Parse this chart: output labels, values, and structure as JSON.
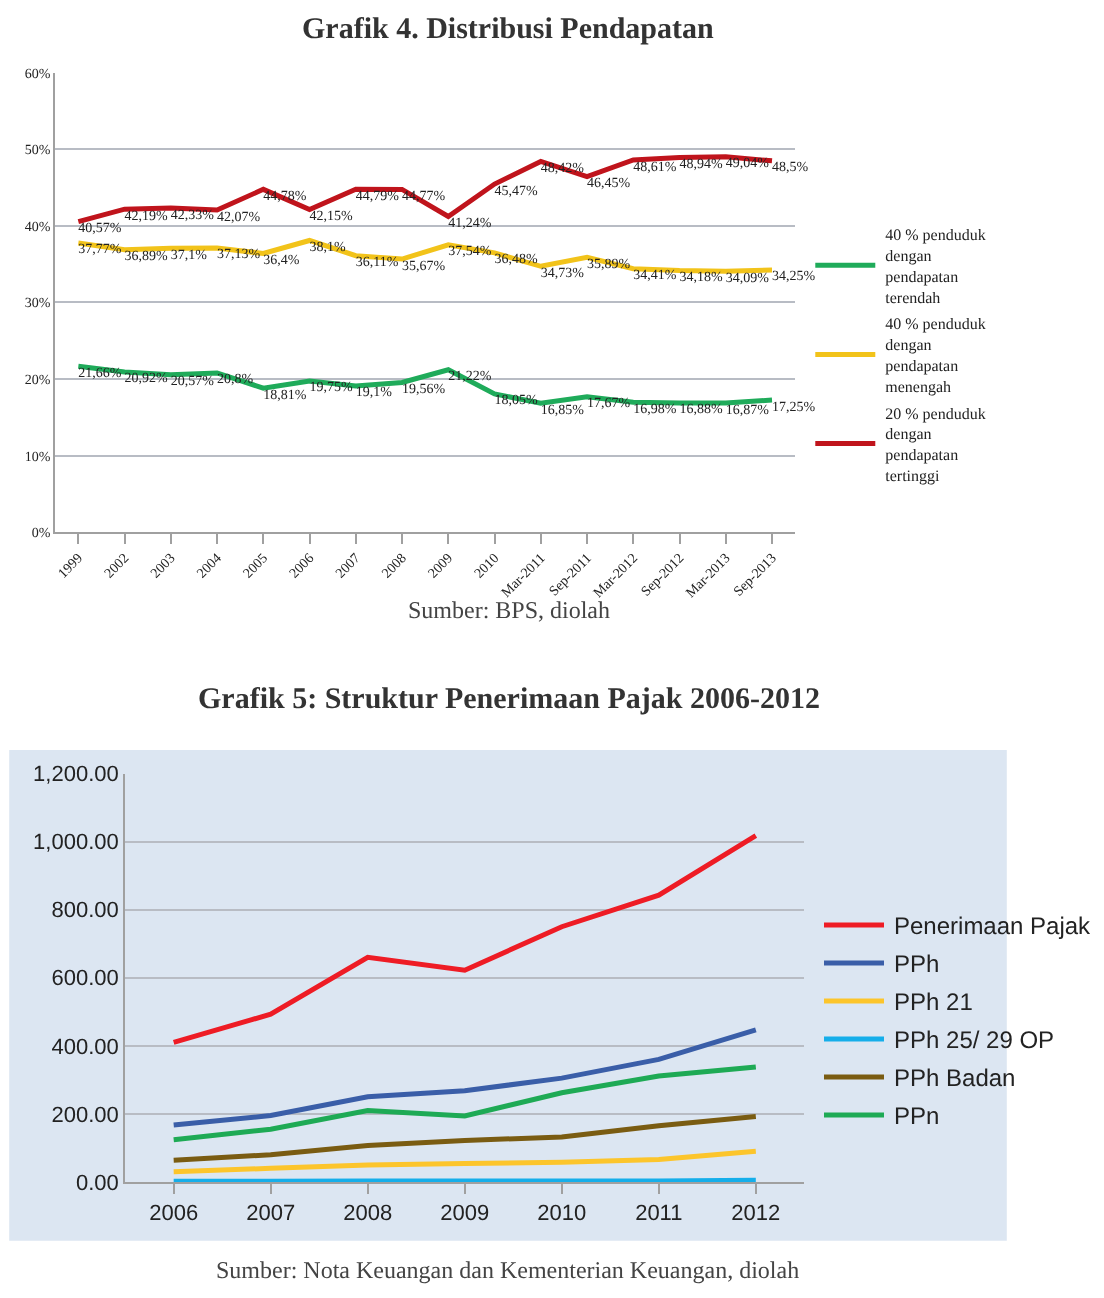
{
  "chart_data": [
    {
      "type": "line",
      "title": "Grafik 4. Distribusi Pendapatan",
      "categories": [
        "1999",
        "2002",
        "2003",
        "2004",
        "2005",
        "2006",
        "2007",
        "2008",
        "2009",
        "2010",
        "Mar-2011",
        "Sep-2011",
        "Mar-2012",
        "Sep-2012",
        "Mar-2013",
        "Sep-2013"
      ],
      "series": [
        {
          "name": "40 % penduduk dengan pendapatan terendah",
          "color": "#1fab5a",
          "values": [
            21.66,
            20.92,
            20.57,
            20.8,
            18.81,
            19.75,
            19.1,
            19.56,
            21.22,
            18.05,
            16.85,
            17.67,
            16.98,
            16.88,
            16.87,
            17.25
          ],
          "value_labels": [
            "21,66%",
            "20,92%",
            "20,57%",
            "20,8%",
            "18,81%",
            "19,75%",
            "19,1%",
            "19,56%",
            "21,22%",
            "18,05%",
            "16,85%",
            "17,67%",
            "16,98%",
            "16,88%",
            "16,87%",
            "17,25%"
          ]
        },
        {
          "name": "40 % penduduk dengan pendapatan menengah",
          "color": "#f2c31a",
          "values": [
            37.77,
            36.89,
            37.1,
            37.13,
            36.4,
            38.1,
            36.11,
            35.67,
            37.54,
            36.48,
            34.73,
            35.89,
            34.41,
            34.18,
            34.09,
            34.25
          ],
          "value_labels": [
            "37,77%",
            "36,89%",
            "37,1%",
            "37,13%",
            "36,4%",
            "38,1%",
            "36,11%",
            "35,67%",
            "37,54%",
            "36,48%",
            "34,73%",
            "35,89%",
            "34,41%",
            "34,18%",
            "34,09%",
            "34,25%"
          ]
        },
        {
          "name": "20 % penduduk dengan pendapatan tertinggi",
          "color": "#c0141c",
          "values": [
            40.57,
            42.19,
            42.33,
            42.07,
            44.78,
            42.15,
            44.79,
            44.77,
            41.24,
            45.47,
            48.42,
            46.45,
            48.61,
            48.94,
            49.04,
            48.5
          ],
          "value_labels": [
            "40,57%",
            "42,19%",
            "42,33%",
            "42,07%",
            "44,78%",
            "42,15%",
            "44,79%",
            "44,77%",
            "41,24%",
            "45,47%",
            "48,42%",
            "46,45%",
            "48,61%",
            "48,94%",
            "49,04%",
            "48,5%"
          ]
        }
      ],
      "ylim": [
        0,
        60
      ],
      "yticks": [
        {
          "value": 0,
          "label": "0%"
        },
        {
          "value": 10,
          "label": "10%"
        },
        {
          "value": 20,
          "label": "20%"
        },
        {
          "value": 30,
          "label": "30%"
        },
        {
          "value": 40,
          "label": "40%"
        },
        {
          "value": 50,
          "label": "50%"
        },
        {
          "value": 60,
          "label": "60%"
        }
      ],
      "grid": "y",
      "legend": "right",
      "marker": "none",
      "line_style": "solid",
      "annotations": [
        "Sumber: BPS, diolah"
      ]
    },
    {
      "type": "line",
      "title": "Grafik 5: Struktur Penerimaan Pajak 2006-2012",
      "categories": [
        "2006",
        "2007",
        "2008",
        "2009",
        "2010",
        "2011",
        "2012"
      ],
      "series": [
        {
          "name": "Penerimaan Pajak",
          "color": "#ee1c25",
          "values": [
            410,
            493,
            660,
            622,
            750,
            843,
            1018
          ]
        },
        {
          "name": "PPh",
          "color": "#3a5ea8",
          "values": [
            167,
            195,
            250,
            268,
            305,
            360,
            447
          ]
        },
        {
          "name": "PPh 21",
          "color": "#fcc52c",
          "values": [
            30,
            40,
            50,
            54,
            58,
            66,
            90
          ]
        },
        {
          "name": "PPh 25/ 29 OP",
          "color": "#15aeea",
          "values": [
            2,
            2,
            3,
            3,
            3,
            3,
            5
          ]
        },
        {
          "name": "PPh Badan",
          "color": "#7a5c12",
          "values": [
            64,
            80,
            107,
            122,
            132,
            165,
            192
          ]
        },
        {
          "name": "PPn",
          "color": "#1eaa55",
          "values": [
            124,
            155,
            210,
            194,
            262,
            311,
            338
          ]
        }
      ],
      "ylim": [
        0,
        1200
      ],
      "yticks": [
        {
          "value": 0,
          "label": "0.00"
        },
        {
          "value": 200,
          "label": "200.00"
        },
        {
          "value": 400,
          "label": "400.00"
        },
        {
          "value": 600,
          "label": "600.00"
        },
        {
          "value": 800,
          "label": "800.00"
        },
        {
          "value": 1000,
          "label": "1,000.00"
        },
        {
          "value": 1200,
          "label": "1,200.00"
        }
      ],
      "grid": "y",
      "legend": "right",
      "marker": "none",
      "line_style": "solid",
      "annotations": [
        "Sumber: Nota Keuangan dan Kementerian Keuangan, diolah"
      ]
    }
  ]
}
